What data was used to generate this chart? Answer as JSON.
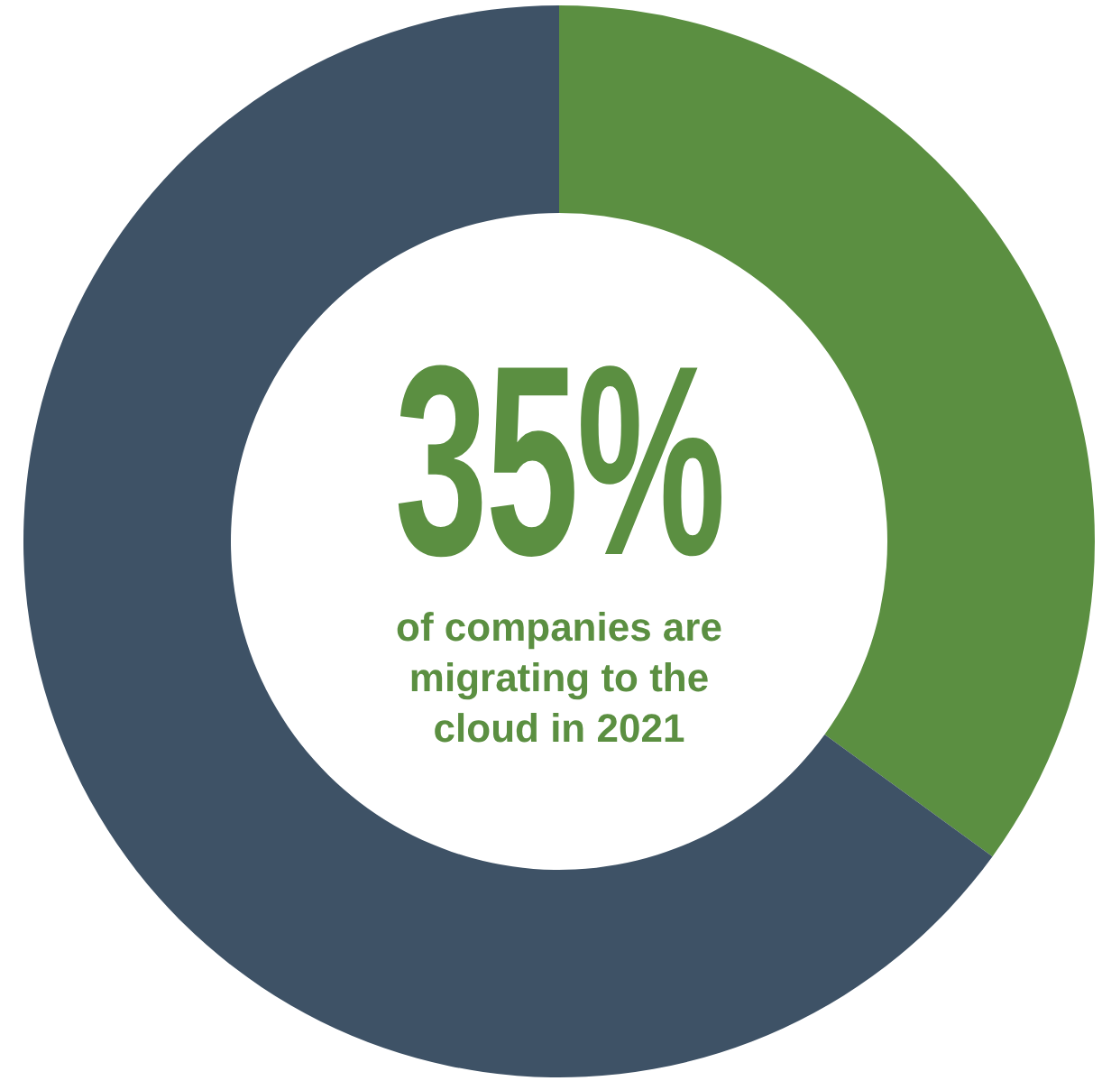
{
  "chart_data": {
    "type": "donut",
    "categories": [
      null,
      null
    ],
    "values": [
      35,
      65
    ],
    "colors": [
      "#5b8f41",
      "#3e5266"
    ],
    "annotations": [
      "35%",
      "of companies are migrating to the cloud in 2021"
    ]
  }
}
